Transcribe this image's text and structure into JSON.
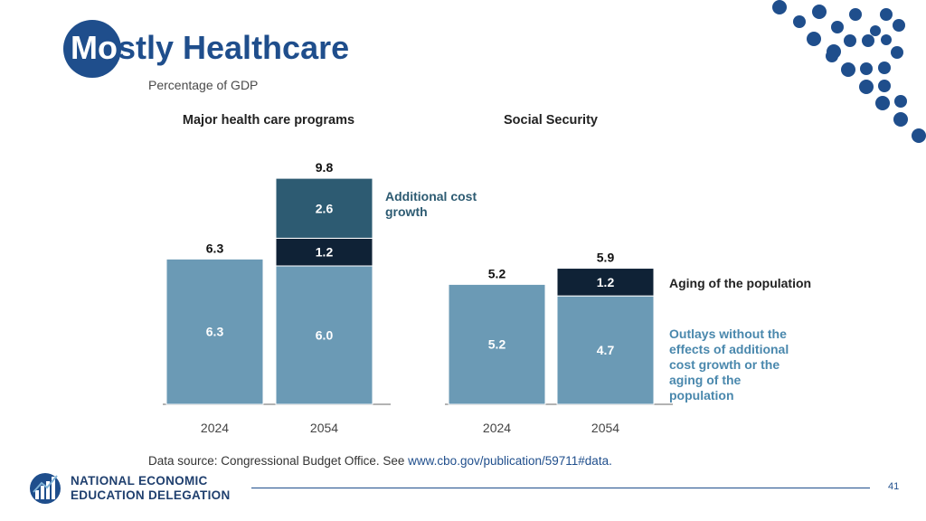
{
  "slide": {
    "title_prefix": "Mo",
    "title_rest": "stly Healthcare",
    "subtitle": "Percentage of GDP",
    "source_prefix": "Data source: Congressional Budget Office. See ",
    "source_url": "www.cbo.gov/publication/59711#data.",
    "logo_line1": "NATIONAL ECONOMIC",
    "logo_line2": "EDUCATION DELEGATION",
    "page_number": "41"
  },
  "colors": {
    "brand": "#1f4e8c",
    "base": "#6b9ab5",
    "aging": "#0f2236",
    "growth": "#2d5b72",
    "label_teal": "#2d5b72",
    "label_base": "#4a88ad"
  },
  "chart_data": [
    {
      "type": "bar",
      "stacked": true,
      "title": "Major health care programs",
      "ylabel": "Percentage of GDP",
      "categories": [
        "2024",
        "2054"
      ],
      "series": [
        {
          "name": "Outlays without the effects of additional cost growth or the aging of the population",
          "values": [
            6.3,
            6.0
          ]
        },
        {
          "name": "Aging of the population",
          "values": [
            0,
            1.2
          ]
        },
        {
          "name": "Additional cost growth",
          "values": [
            0,
            2.6
          ]
        }
      ],
      "totals": [
        "6.3",
        "9.8"
      ],
      "segment_labels": [
        [
          "6.3"
        ],
        [
          "6.0",
          "1.2",
          "2.6"
        ]
      ],
      "annotations": [
        "Additional cost growth"
      ],
      "ylim": [
        0,
        10
      ]
    },
    {
      "type": "bar",
      "stacked": true,
      "title": "Social Security",
      "ylabel": "Percentage of GDP",
      "categories": [
        "2024",
        "2054"
      ],
      "series": [
        {
          "name": "Outlays without the effects of additional cost growth or the aging of the population",
          "values": [
            5.2,
            4.7
          ]
        },
        {
          "name": "Aging of the population",
          "values": [
            0,
            1.2
          ]
        }
      ],
      "totals": [
        "5.2",
        "5.9"
      ],
      "segment_labels": [
        [
          "5.2"
        ],
        [
          "4.7",
          "1.2"
        ]
      ],
      "annotations": [
        "Aging of the population",
        "Outlays without the effects of additional cost growth or the aging of the population"
      ],
      "ylim": [
        0,
        10
      ]
    }
  ]
}
